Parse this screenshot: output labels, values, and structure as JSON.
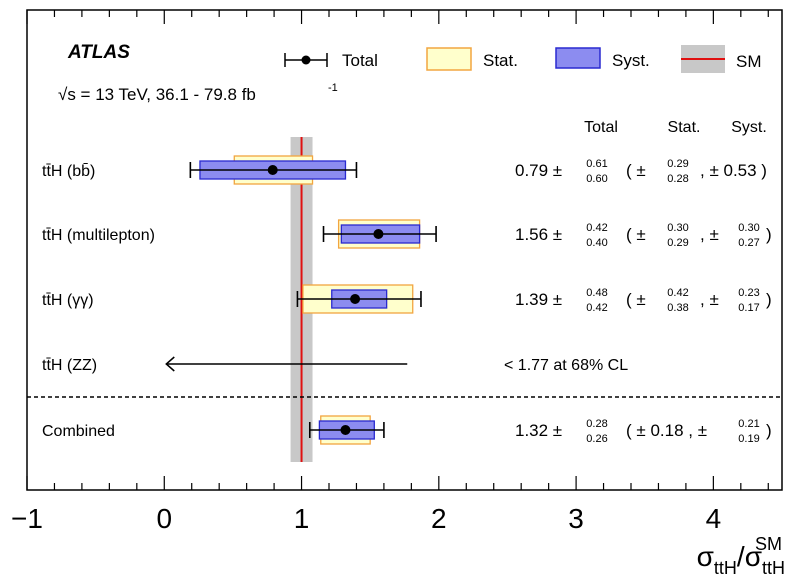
{
  "chart_data": {
    "type": "forest",
    "experiment": "ATLAS",
    "energy_text": "√s = 13 TeV, 36.1 - 79.8 fb",
    "energy_sup": "-1",
    "legend": {
      "total": "Total",
      "stat": "Stat.",
      "syst": "Syst.",
      "sm": "SM"
    },
    "column_headers": {
      "total": "Total",
      "stat": "Stat.",
      "syst": "Syst."
    },
    "xlabel": {
      "base": "σ",
      "sub1": "ttH",
      "slash": "/",
      "base2": "σ",
      "sub2": "ttH",
      "sup2": "SM"
    },
    "xlim": [
      -1,
      4.5
    ],
    "xticks": [
      -1,
      0,
      1,
      2,
      3,
      4
    ],
    "xtick_labels": [
      "−1",
      "0",
      "1",
      "2",
      "3",
      "4"
    ],
    "sm_value": 1,
    "sm_band": [
      0.92,
      1.08
    ],
    "colors": {
      "stat_fill": "#ffffcc",
      "stat_edge": "#f2a540",
      "syst_fill": "#8c8cf0",
      "syst_edge": "#2a2ad0",
      "sm_line": "#e01010",
      "sm_band": "#c8c8c8"
    },
    "channels": [
      {
        "label": "tt̄H (bb̄)",
        "value": 0.79,
        "total_up": 0.61,
        "total_down": 0.6,
        "stat_up": 0.29,
        "stat_down": 0.28,
        "syst_up": 0.53,
        "syst_down": 0.53,
        "val_text": "0.79 ±",
        "tot_up_text": "0.61",
        "tot_down_text": "0.60",
        "stat_open": "( ±",
        "stat_up_text": "0.29",
        "stat_down_text": "0.28",
        "syst_prefix": ", ± 0.53 )",
        "syst_up_text": "",
        "syst_down_text": "",
        "syst_close": ""
      },
      {
        "label": "tt̄H (multilepton)",
        "value": 1.56,
        "total_up": 0.42,
        "total_down": 0.4,
        "stat_up": 0.3,
        "stat_down": 0.29,
        "syst_up": 0.3,
        "syst_down": 0.27,
        "val_text": "1.56 ±",
        "tot_up_text": "0.42",
        "tot_down_text": "0.40",
        "stat_open": "( ±",
        "stat_up_text": "0.30",
        "stat_down_text": "0.29",
        "syst_prefix": ", ±",
        "syst_up_text": "0.30",
        "syst_down_text": "0.27",
        "syst_close": ")"
      },
      {
        "label": "tt̄H (γγ)",
        "value": 1.39,
        "total_up": 0.48,
        "total_down": 0.42,
        "stat_up": 0.42,
        "stat_down": 0.38,
        "syst_up": 0.23,
        "syst_down": 0.17,
        "val_text": "1.39 ±",
        "tot_up_text": "0.48",
        "tot_down_text": "0.42",
        "stat_open": "( ±",
        "stat_up_text": "0.42",
        "stat_down_text": "0.38",
        "syst_prefix": ", ±",
        "syst_up_text": "0.23",
        "syst_down_text": "0.17",
        "syst_close": ")"
      },
      {
        "label": "tt̄H (ZZ)",
        "upper_limit": 1.77,
        "limit_text": "< 1.77 at 68% CL"
      },
      {
        "label": "Combined",
        "value": 1.32,
        "total_up": 0.28,
        "total_down": 0.26,
        "stat_up": 0.18,
        "stat_down": 0.18,
        "syst_up": 0.21,
        "syst_down": 0.19,
        "val_text": "1.32 ±",
        "tot_up_text": "0.28",
        "tot_down_text": "0.26",
        "stat_open": "( ± 0.18 , ±",
        "stat_up_text": "",
        "stat_down_text": "",
        "syst_prefix": "",
        "syst_up_text": "0.21",
        "syst_down_text": "0.19",
        "syst_close": ")"
      }
    ]
  }
}
